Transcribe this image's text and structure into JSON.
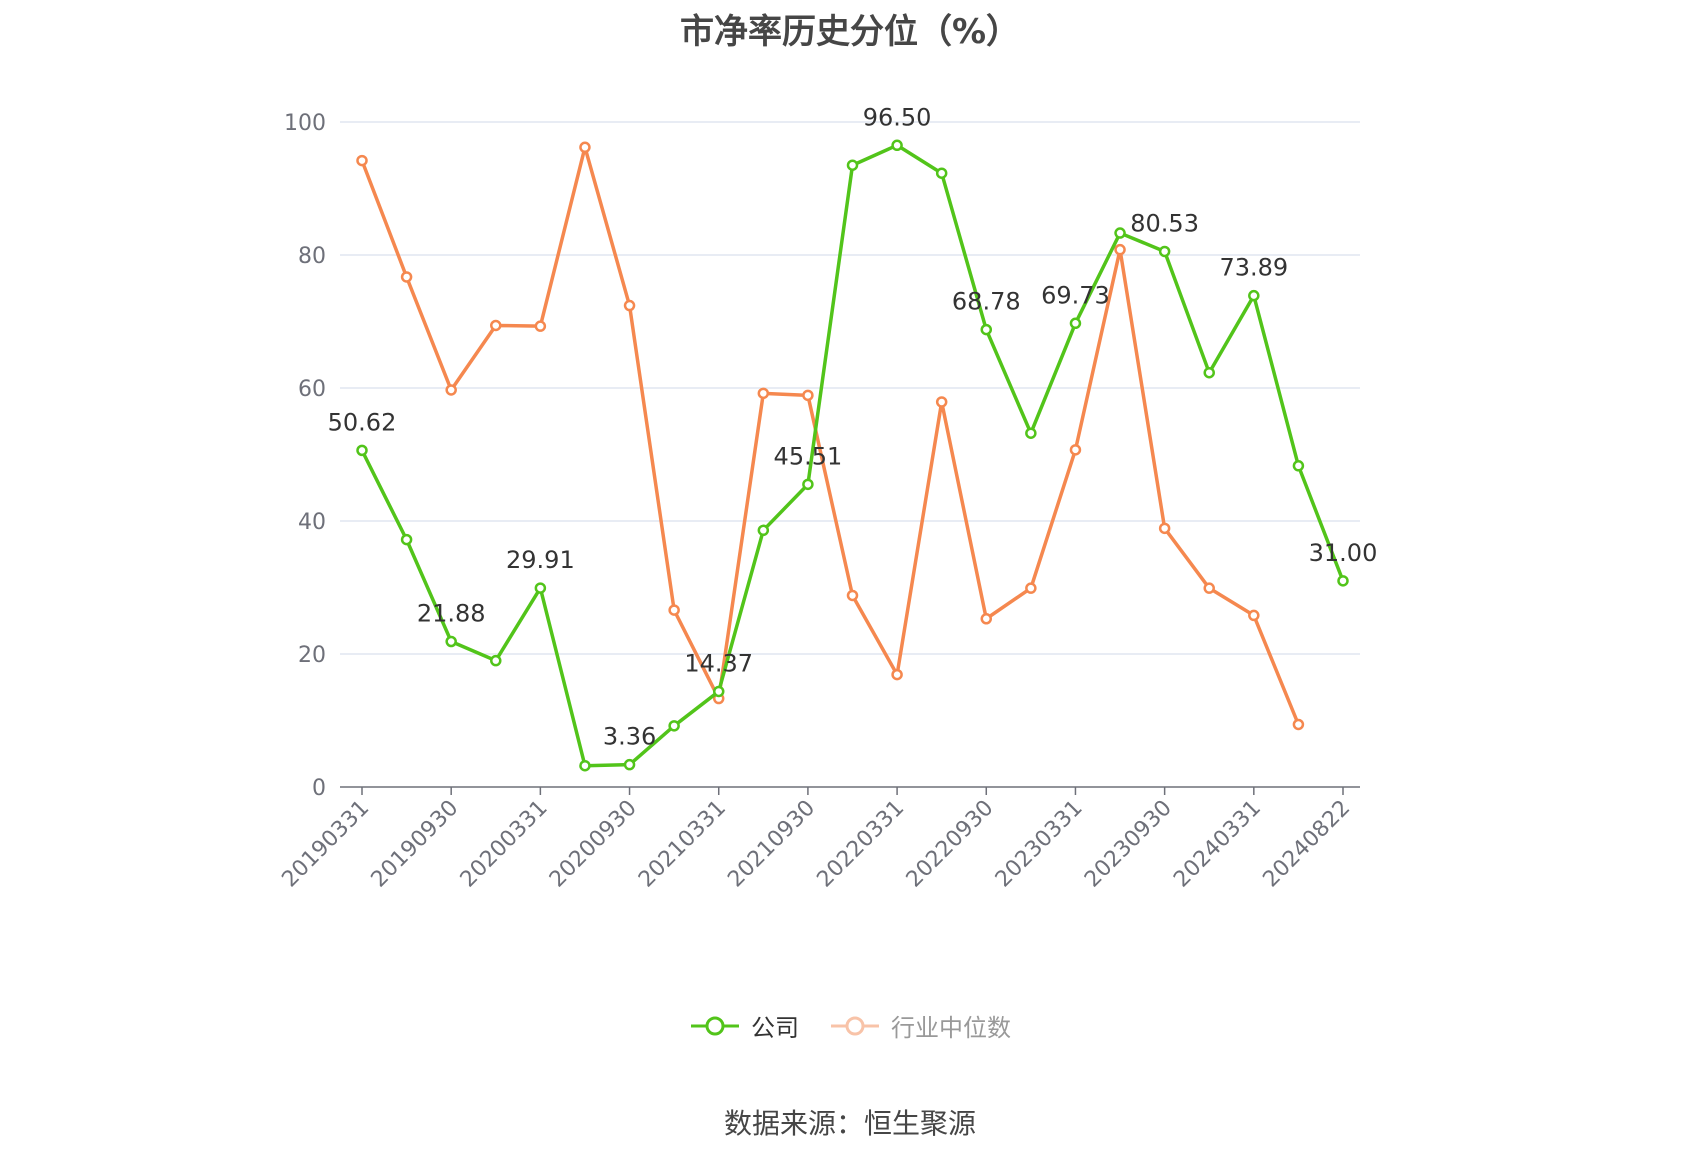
{
  "chart_data": {
    "type": "line",
    "title": "市净率历史分位（%）",
    "ylim": [
      0,
      100
    ],
    "yticks": [
      0,
      20,
      40,
      60,
      80,
      100
    ],
    "grid": true,
    "legend_position": "bottom-center",
    "x": [
      "20190331",
      "20190630",
      "20190930",
      "20191231",
      "20200331",
      "20200630",
      "20200930",
      "20201231",
      "20210331",
      "20210630",
      "20210930",
      "20211231",
      "20220331",
      "20220630",
      "20220930",
      "20221231",
      "20230331",
      "20230630",
      "20230930",
      "20231231",
      "20240331",
      "20240630",
      "20240822"
    ],
    "x_tick_labels": [
      "20190331",
      "20190930",
      "20200331",
      "20200930",
      "20210331",
      "20210930",
      "20220331",
      "20220930",
      "20230331",
      "20230930",
      "20240331",
      "20240822"
    ],
    "series": [
      {
        "name": "公司",
        "color": "#52c41a",
        "values": [
          50.62,
          37.2,
          21.88,
          19.0,
          29.91,
          3.2,
          3.36,
          9.2,
          14.37,
          38.6,
          45.51,
          93.5,
          96.5,
          92.3,
          68.78,
          53.2,
          69.73,
          83.3,
          80.53,
          62.3,
          73.89,
          48.3,
          31.0
        ]
      },
      {
        "name": "行业中位数",
        "color": "#f5884f",
        "values": [
          94.2,
          76.7,
          59.7,
          69.4,
          69.3,
          96.2,
          72.4,
          26.6,
          13.3,
          59.2,
          58.9,
          28.8,
          16.9,
          57.9,
          25.3,
          29.9,
          50.7,
          80.8,
          38.9,
          29.9,
          25.8,
          9.4,
          null
        ]
      }
    ],
    "data_labels": [
      {
        "index": 0,
        "text": "50.62"
      },
      {
        "index": 2,
        "text": "21.88"
      },
      {
        "index": 4,
        "text": "29.91"
      },
      {
        "index": 6,
        "text": "3.36"
      },
      {
        "index": 8,
        "text": "14.37"
      },
      {
        "index": 10,
        "text": "45.51"
      },
      {
        "index": 12,
        "text": "96.50"
      },
      {
        "index": 14,
        "text": "68.78"
      },
      {
        "index": 16,
        "text": "69.73"
      },
      {
        "index": 18,
        "text": "80.53"
      },
      {
        "index": 20,
        "text": "73.89"
      },
      {
        "index": 22,
        "text": "31.00"
      }
    ]
  },
  "legend": {
    "company_label": "公司",
    "industry_label": "行业中位数"
  },
  "footer": {
    "source": "数据来源：恒生聚源"
  }
}
